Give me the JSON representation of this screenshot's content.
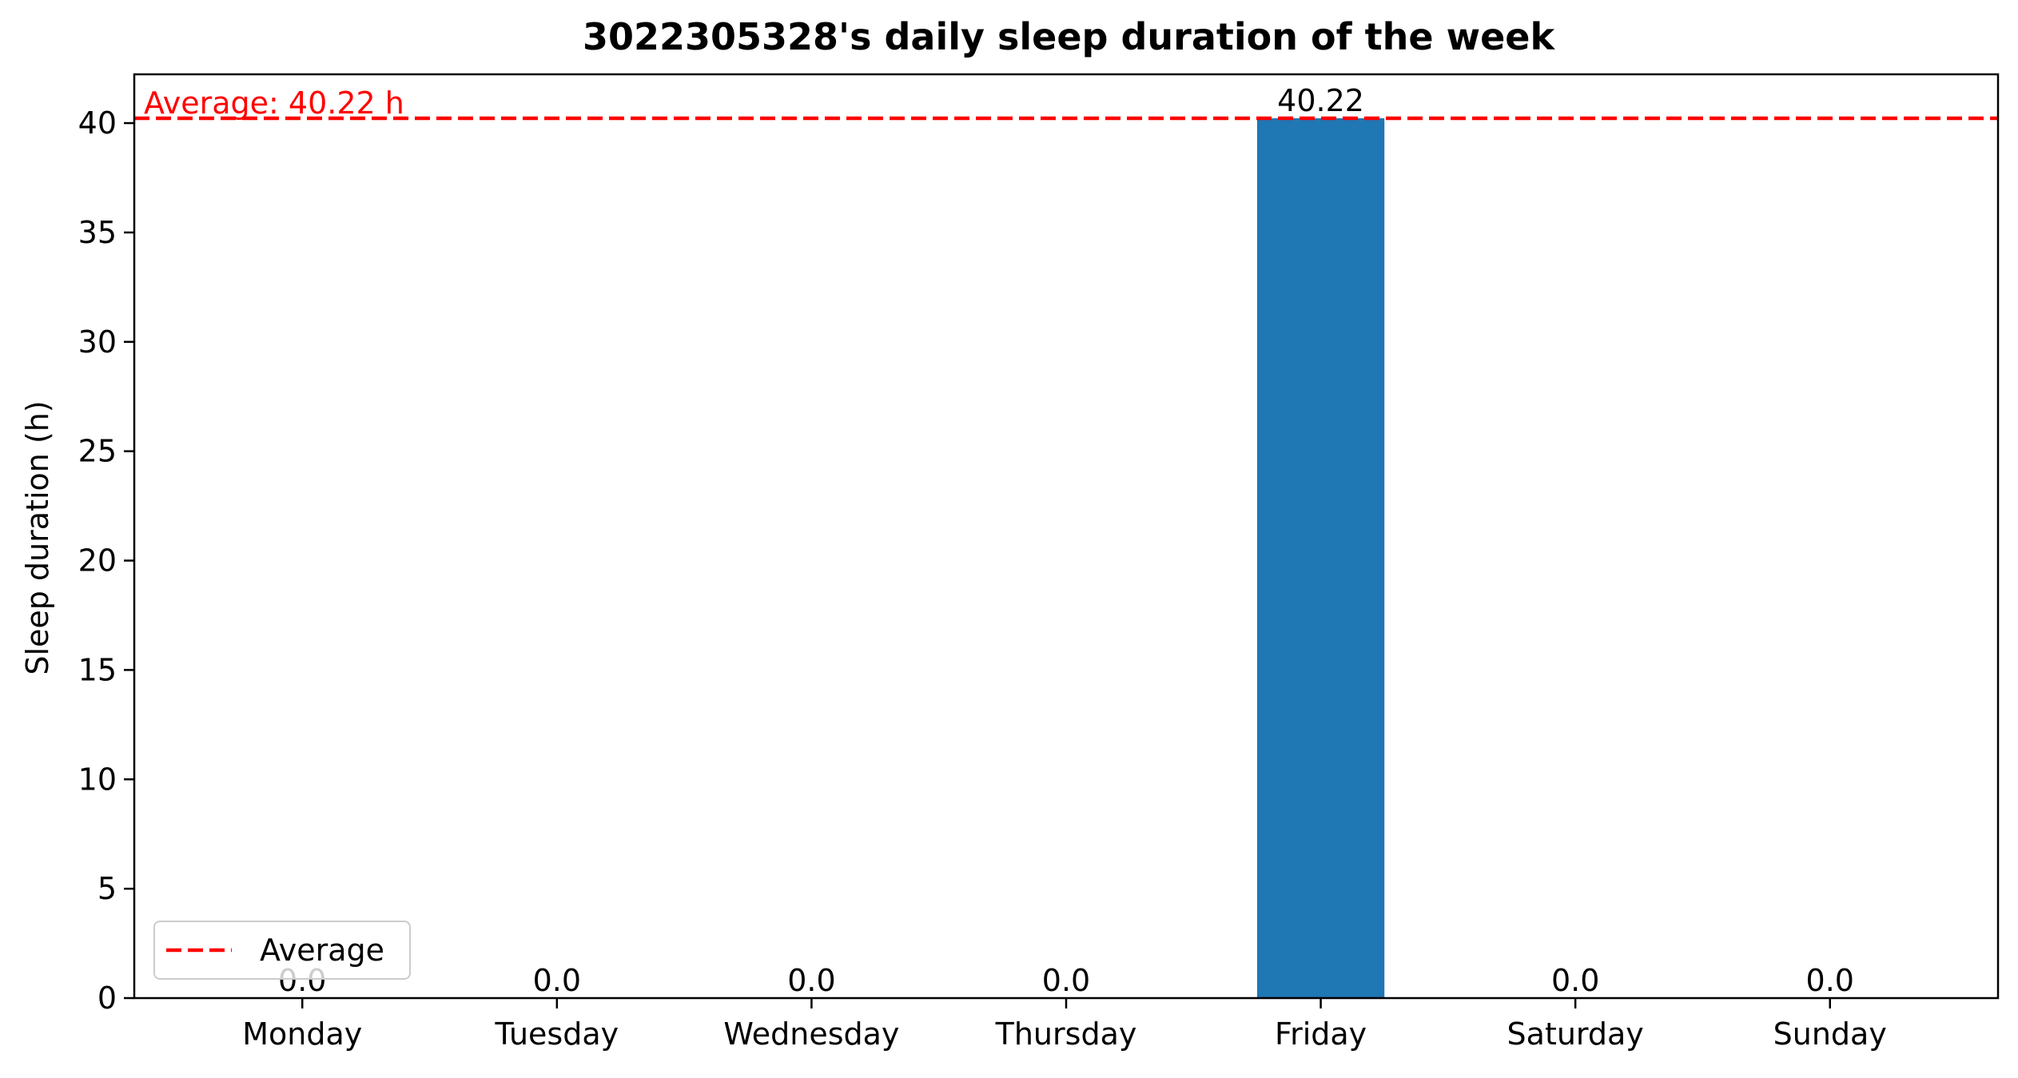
{
  "chart_data": {
    "type": "bar",
    "title": "3022305328's daily sleep duration of the week",
    "xlabel": "",
    "ylabel": "Sleep duration (h)",
    "categories": [
      "Monday",
      "Tuesday",
      "Wednesday",
      "Thursday",
      "Friday",
      "Saturday",
      "Sunday"
    ],
    "values": [
      0.0,
      0.0,
      0.0,
      0.0,
      40.22,
      0.0,
      0.0
    ],
    "value_labels": [
      "0.0",
      "0.0",
      "0.0",
      "0.0",
      "40.22",
      "0.0",
      "0.0"
    ],
    "ylim": [
      0,
      42.23
    ],
    "yticks": [
      0,
      5,
      10,
      15,
      20,
      25,
      30,
      35,
      40
    ],
    "ytick_labels": [
      "0",
      "5",
      "10",
      "15",
      "20",
      "25",
      "30",
      "35",
      "40"
    ],
    "average": 40.22,
    "average_label": "Average: 40.22 h",
    "legend": {
      "entries": [
        "Average"
      ],
      "placement": "lower-left"
    },
    "grid": false,
    "colors": {
      "bar": "#1f77b4",
      "average": "#ff0000",
      "axis": "#000000"
    }
  }
}
